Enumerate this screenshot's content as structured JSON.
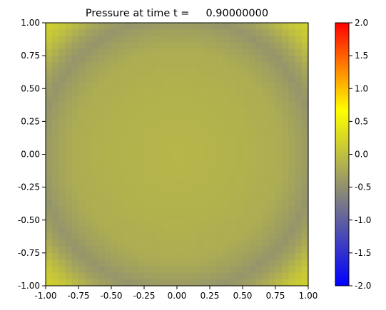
{
  "chart_data": {
    "type": "heatmap",
    "title": "Pressure at time t =     0.90000000",
    "xlabel": "",
    "ylabel": "",
    "xlim": [
      -1.0,
      1.0
    ],
    "ylim": [
      -1.0,
      1.0
    ],
    "x_ticks": [
      "-1.00",
      "-0.75",
      "-0.50",
      "-0.25",
      "0.00",
      "0.25",
      "0.50",
      "0.75",
      "1.00"
    ],
    "y_ticks": [
      "-1.00",
      "-0.75",
      "-0.50",
      "-0.25",
      "0.00",
      "0.25",
      "0.50",
      "0.75",
      "1.00"
    ],
    "grid": false,
    "grid_resolution": 40,
    "field_description": "radially symmetric pressure, ~-0.1 at center, ring of ~-0.45 near radius 1.05, positive (~0.2) in the corners",
    "field_samples": {
      "radius": [
        0.0,
        0.5,
        0.8,
        0.95,
        1.05,
        1.15,
        1.3,
        1.414
      ],
      "pressure": [
        -0.1,
        -0.14,
        -0.2,
        -0.33,
        -0.45,
        -0.3,
        0.05,
        0.2
      ]
    },
    "colorbar": {
      "min": -2.0,
      "max": 2.0,
      "tick_labels": [
        "-2.0",
        "-1.5",
        "-1.0",
        "-0.5",
        "0.0",
        "0.5",
        "1.0",
        "1.5",
        "2.0"
      ],
      "colormap": [
        "#0000ff",
        "#808080",
        "#ffff00",
        "#ff0000"
      ]
    }
  }
}
